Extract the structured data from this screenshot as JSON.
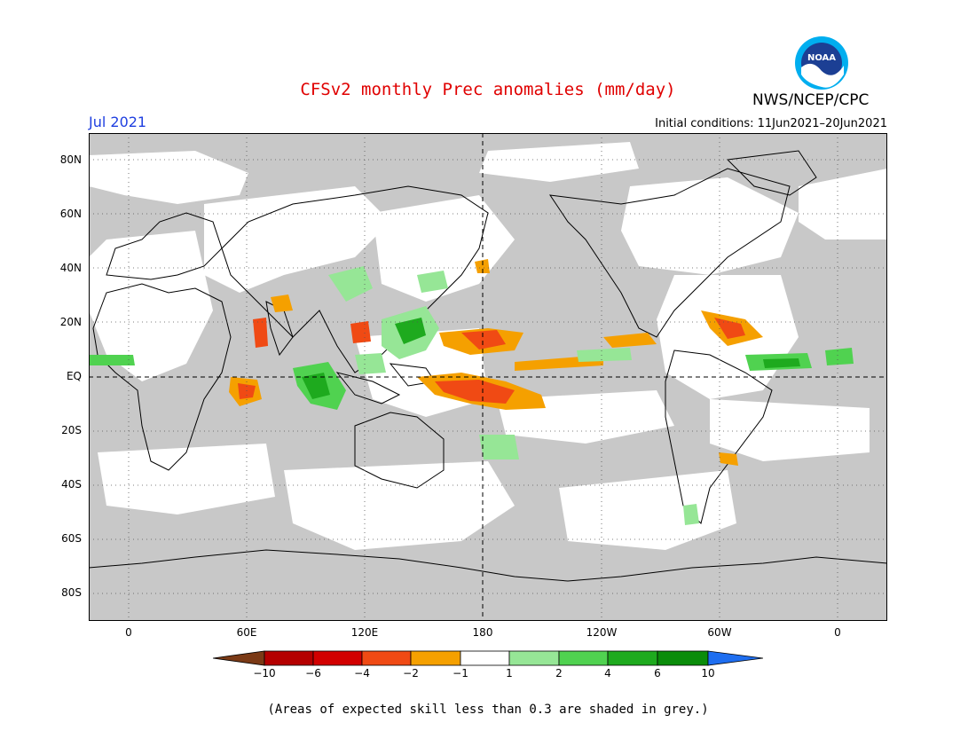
{
  "header": {
    "title": "CFSv2 monthly Prec anomalies (mm/day)",
    "month": "Jul 2021",
    "initial_conditions": "Initial conditions: 11Jun2021–20Jun2021",
    "agency": "NWS/NCEP/CPC",
    "logo_text": "NOAA"
  },
  "map": {
    "lat_labels": [
      "80N",
      "60N",
      "40N",
      "20N",
      "EQ",
      "20S",
      "40S",
      "60S",
      "80S"
    ],
    "lon_labels": [
      "0",
      "60E",
      "120E",
      "180",
      "120W",
      "60W",
      "0"
    ],
    "grey_color": "#c8c8c8",
    "land_outline_color": "#000000"
  },
  "colorbar": {
    "tick_labels": [
      "−10",
      "−6",
      "−4",
      "−2",
      "−1",
      "1",
      "2",
      "4",
      "6",
      "10"
    ],
    "colors": [
      "#7b3a16",
      "#b40000",
      "#d20000",
      "#f04a14",
      "#f5a000",
      "#ffffff",
      "#96e696",
      "#50d250",
      "#1eaa1e",
      "#0a8c0a",
      "#1e6ef0"
    ]
  },
  "footnote": "(Areas of expected skill less than 0.3 are shaded in grey.)"
}
